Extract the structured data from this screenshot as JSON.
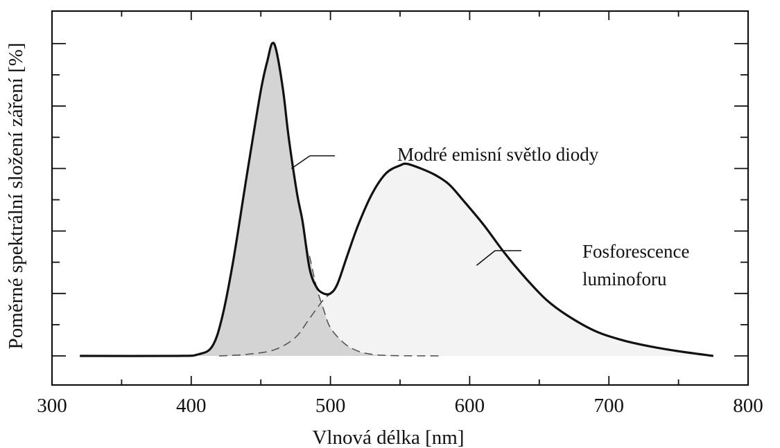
{
  "chart_data": {
    "type": "area",
    "title": "",
    "xlabel": "Vlnová délka [nm]",
    "ylabel": "Poměrné spektrální složení záření [%]",
    "xlim": [
      300,
      800
    ],
    "ylim": [
      0,
      100
    ],
    "x_ticks": [
      300,
      400,
      500,
      600,
      700,
      800
    ],
    "y_tick_labels_shown": false,
    "grid": false,
    "series": [
      {
        "role": "total",
        "points": [
          [
            320,
            0
          ],
          [
            390,
            0
          ],
          [
            405,
            0.5
          ],
          [
            415,
            3
          ],
          [
            422,
            12
          ],
          [
            430,
            30
          ],
          [
            440,
            58
          ],
          [
            450,
            85
          ],
          [
            455,
            95
          ],
          [
            458,
            100
          ],
          [
            461,
            98
          ],
          [
            466,
            85
          ],
          [
            470,
            70
          ],
          [
            476,
            52
          ],
          [
            480,
            43
          ],
          [
            485,
            28
          ],
          [
            490,
            22
          ],
          [
            495,
            20
          ],
          [
            500,
            20
          ],
          [
            505,
            23
          ],
          [
            512,
            32
          ],
          [
            520,
            42
          ],
          [
            530,
            52
          ],
          [
            540,
            58.5
          ],
          [
            550,
            61
          ],
          [
            555,
            61.5
          ],
          [
            565,
            60
          ],
          [
            575,
            58
          ],
          [
            585,
            55
          ],
          [
            595,
            50
          ],
          [
            610,
            42
          ],
          [
            625,
            33
          ],
          [
            640,
            25
          ],
          [
            655,
            18
          ],
          [
            670,
            13
          ],
          [
            690,
            8
          ],
          [
            710,
            5
          ],
          [
            730,
            3
          ],
          [
            750,
            1.5
          ],
          [
            775,
            0
          ]
        ]
      },
      {
        "role": "blue",
        "points": [
          [
            320,
            0
          ],
          [
            390,
            0
          ],
          [
            405,
            0.5
          ],
          [
            415,
            3
          ],
          [
            422,
            12
          ],
          [
            430,
            30
          ],
          [
            440,
            58
          ],
          [
            450,
            85
          ],
          [
            455,
            95
          ],
          [
            458,
            100
          ],
          [
            461,
            98
          ],
          [
            466,
            85
          ],
          [
            470,
            70
          ],
          [
            476,
            52
          ],
          [
            480,
            43
          ],
          [
            485,
            32
          ],
          [
            490,
            22
          ],
          [
            495,
            15
          ],
          [
            500,
            9
          ],
          [
            510,
            4
          ],
          [
            520,
            1.5
          ],
          [
            530,
            0.5
          ],
          [
            545,
            0.1
          ],
          [
            580,
            0
          ]
        ]
      },
      {
        "role": "phosphor",
        "points": [
          [
            420,
            0
          ],
          [
            440,
            0.5
          ],
          [
            460,
            2
          ],
          [
            475,
            6
          ],
          [
            485,
            12
          ],
          [
            495,
            18
          ],
          [
            500,
            20
          ],
          [
            505,
            23
          ],
          [
            512,
            32
          ],
          [
            520,
            42
          ],
          [
            530,
            52
          ],
          [
            540,
            58.5
          ],
          [
            550,
            61
          ],
          [
            555,
            61.5
          ],
          [
            565,
            60
          ],
          [
            575,
            58
          ],
          [
            585,
            55
          ],
          [
            595,
            50
          ],
          [
            610,
            42
          ],
          [
            625,
            33
          ],
          [
            640,
            25
          ],
          [
            655,
            18
          ],
          [
            670,
            13
          ],
          [
            690,
            8
          ],
          [
            710,
            5
          ],
          [
            730,
            3
          ],
          [
            750,
            1.5
          ],
          [
            775,
            0
          ]
        ]
      }
    ],
    "annotations": [
      {
        "id": "blue",
        "lines": [
          "Modré emisní světlo diody"
        ]
      },
      {
        "id": "phosphor",
        "lines": [
          "Fosforescence",
          "luminoforu"
        ]
      }
    ]
  },
  "colors": {
    "blue_fill": "#d4d4d4",
    "phosphor_fill": "#f3f3f3",
    "line": "#111111"
  }
}
